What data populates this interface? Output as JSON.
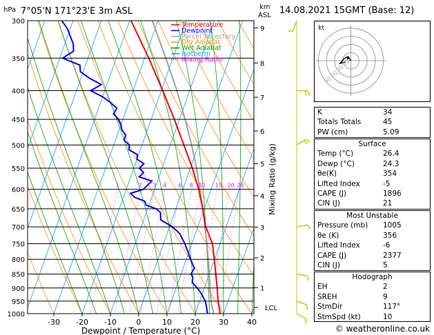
{
  "header": {
    "location": "7°05'N 171°23'E 3m ASL",
    "datetime": "14.08.2021 15GMT (Base: 12)",
    "pressure_unit": "hPa",
    "height_unit_top": "km",
    "height_unit_bottom": "ASL"
  },
  "colors": {
    "temperature": "#ff0000",
    "dewpoint": "#0000ff",
    "parcel": "#a0a0a0",
    "dry_adiabat": "#ff8c00",
    "wet_adiabat": "#00a000",
    "isotherm": "#00a0ff",
    "mixing_ratio": "#ff00ff",
    "wind": "#c8c800"
  },
  "legend": [
    "Temperature",
    "Dewpoint",
    "Parcel Trajectory",
    "Dry Adiabat",
    "Wet Adiabat",
    "Isotherm",
    "Mixing Ratio"
  ],
  "chart_data": {
    "type": "line",
    "xlabel": "Dewpoint / Temperature (°C)",
    "ylabel_right": "Mixing Ratio (g/kg)",
    "xlim": [
      -35,
      40
    ],
    "ylim_hpa": [
      1000,
      300
    ],
    "x_ticks": [
      -30,
      -20,
      -10,
      0,
      10,
      20,
      30,
      40
    ],
    "pressure_levels": [
      300,
      350,
      400,
      450,
      500,
      550,
      600,
      650,
      700,
      750,
      800,
      850,
      900,
      950,
      1000
    ],
    "km_ticks": [
      {
        "label": "9",
        "p": 309
      },
      {
        "label": "8",
        "p": 357
      },
      {
        "label": "7",
        "p": 411
      },
      {
        "label": "6",
        "p": 472
      },
      {
        "label": "5",
        "p": 540
      },
      {
        "label": "4",
        "p": 616
      },
      {
        "label": "3",
        "p": 701
      },
      {
        "label": "2",
        "p": 795
      },
      {
        "label": "1",
        "p": 899
      },
      {
        "label": "LCL",
        "p": 975
      }
    ],
    "mixing_ratio_labels": [
      "1",
      "2",
      "3",
      "4",
      "6",
      "8",
      "10",
      "15",
      "20",
      "25"
    ],
    "series": [
      {
        "name": "Temperature",
        "p": [
          1000,
          950,
          900,
          850,
          800,
          750,
          700,
          650,
          600,
          550,
          500,
          450,
          400,
          350,
          300
        ],
        "t": [
          28.8,
          26.5,
          24.5,
          22.3,
          19.9,
          17.3,
          12.8,
          9.5,
          5.6,
          0.7,
          -5.2,
          -11.8,
          -19.5,
          -28.5,
          -39.5
        ]
      },
      {
        "name": "Dewpoint",
        "p": [
          1000,
          970,
          950,
          920,
          900,
          880,
          860,
          850,
          830,
          800,
          780,
          750,
          720,
          700,
          680,
          660,
          650,
          640,
          630,
          620,
          610,
          600,
          590,
          580,
          570,
          560,
          550,
          540,
          530,
          520,
          510,
          500,
          490,
          480,
          470,
          460,
          450,
          440,
          430,
          420,
          410,
          400,
          390,
          380,
          370,
          360,
          350,
          340,
          330,
          320,
          310,
          300
        ],
        "t": [
          24.3,
          23.0,
          22.0,
          19.5,
          17.5,
          15.0,
          14.5,
          13.5,
          14.0,
          11.5,
          10.0,
          7.5,
          4.5,
          1.0,
          -4.0,
          -5.0,
          -7.0,
          -11.0,
          -12.0,
          -16.0,
          -18.0,
          -14.0,
          -13.0,
          -12.0,
          -17.0,
          -16.0,
          -18.0,
          -17.0,
          -20.0,
          -20.5,
          -24.0,
          -24.5,
          -27.0,
          -27.0,
          -29.0,
          -30.0,
          -31.5,
          -34.0,
          -33.5,
          -36.5,
          -40.0,
          -45.0,
          -42.0,
          -47.0,
          -51.0,
          -52.0,
          -59.0,
          -56.0,
          -57.0,
          -59.0,
          -61.0,
          -64.0
        ]
      },
      {
        "name": "Parcel Trajectory",
        "p": [
          1000,
          950,
          900,
          850,
          800,
          750,
          700,
          650,
          600,
          550,
          500,
          450,
          400,
          350,
          300
        ],
        "t": [
          26.5,
          24.0,
          22.0,
          20.0,
          17.8,
          15.3,
          12.5,
          9.5,
          6.0,
          2.2,
          -2.5,
          -8.0,
          -14.5,
          -22.5,
          -32.0
        ]
      }
    ]
  },
  "wind_barbs": [
    {
      "p": 1000,
      "dir": 120,
      "kt": 5
    },
    {
      "p": 950,
      "dir": 110,
      "kt": 10
    },
    {
      "p": 850,
      "dir": 100,
      "kt": 10
    },
    {
      "p": 700,
      "dir": 80,
      "kt": 10
    },
    {
      "p": 500,
      "dir": 60,
      "kt": 15
    },
    {
      "p": 400,
      "dir": 90,
      "kt": 15
    },
    {
      "p": 300,
      "dir": 200,
      "kt": 10
    }
  ],
  "hodograph": {
    "title": "kt",
    "ring_labels": [
      "10",
      "20",
      "30",
      "40"
    ]
  },
  "stats": {
    "top": [
      {
        "label": "K",
        "value": "34"
      },
      {
        "label": "Totals Totals",
        "value": "45"
      },
      {
        "label": "PW (cm)",
        "value": "5.09"
      }
    ],
    "surface_title": "Surface",
    "surface": [
      {
        "label": "Temp (°C)",
        "value": "26.4"
      },
      {
        "label": "Dewp (°C)",
        "value": "24.3"
      },
      {
        "label": "θe(K)",
        "value": "354"
      },
      {
        "label": "Lifted Index",
        "value": "-5"
      },
      {
        "label": "CAPE (J)",
        "value": "1896"
      },
      {
        "label": "CIN (J)",
        "value": "21"
      }
    ],
    "mu_title": "Most Unstable",
    "mu": [
      {
        "label": "Pressure (mb)",
        "value": "1005"
      },
      {
        "label": "θe (K)",
        "value": "356"
      },
      {
        "label": "Lifted Index",
        "value": "-6"
      },
      {
        "label": "CAPE (J)",
        "value": "2377"
      },
      {
        "label": "CIN (J)",
        "value": "5"
      }
    ],
    "hodo_title": "Hodograph",
    "hodo": [
      {
        "label": "EH",
        "value": "2"
      },
      {
        "label": "SREH",
        "value": "9"
      },
      {
        "label": "StmDir",
        "value": "117°"
      },
      {
        "label": "StmSpd (kt)",
        "value": "10"
      }
    ]
  },
  "footer": "© weatheronline.co.uk"
}
